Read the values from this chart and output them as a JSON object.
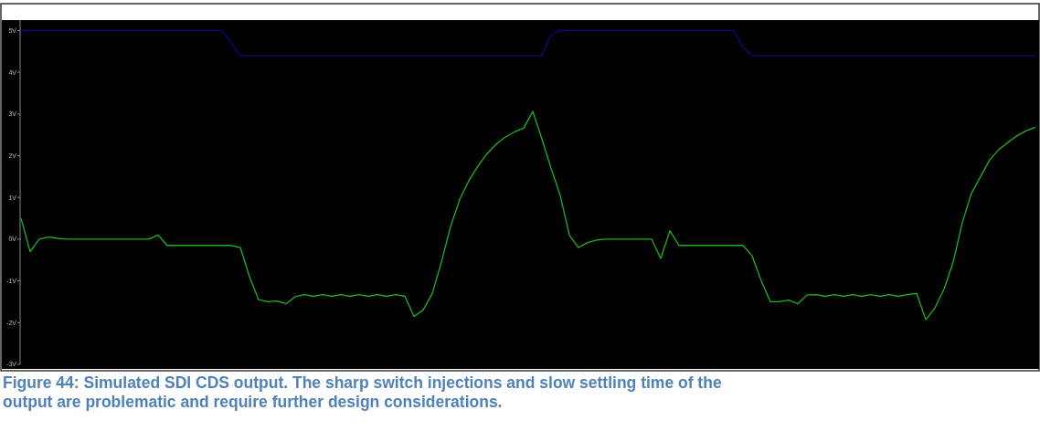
{
  "chart_data": {
    "type": "line",
    "categories": [
      null,
      null,
      null,
      null,
      null,
      null,
      null,
      null,
      null,
      null,
      null,
      null,
      null,
      null,
      null,
      null,
      null,
      null,
      null,
      null,
      null,
      null,
      null,
      null,
      null,
      null,
      null,
      null,
      null,
      null,
      null,
      null,
      null,
      null,
      null,
      null,
      null,
      null,
      null,
      null,
      null,
      null,
      null,
      null,
      null,
      null,
      null,
      null,
      null,
      null,
      null,
      null,
      null,
      null,
      null,
      null,
      null,
      null,
      null,
      null,
      null,
      null,
      null,
      null,
      null,
      null,
      null,
      null,
      null,
      null,
      null,
      null,
      null,
      null,
      null,
      null,
      null,
      null,
      null,
      null,
      null,
      null,
      null,
      null,
      null,
      null,
      null,
      null,
      null,
      null,
      null,
      null,
      null,
      null,
      null,
      null,
      null,
      null,
      null,
      null,
      null,
      null,
      null,
      null,
      null,
      null,
      null,
      null,
      null,
      null,
      null,
      null
    ],
    "series": [
      {
        "color": "#0c0c86",
        "values": [
          5,
          5,
          5,
          5,
          5,
          5,
          5,
          5,
          5,
          5,
          5,
          5,
          5,
          5,
          5,
          5,
          5,
          5,
          5,
          5,
          5,
          5,
          5,
          4.7,
          4.4,
          4.4,
          4.4,
          4.4,
          4.4,
          4.4,
          4.4,
          4.4,
          4.4,
          4.4,
          4.4,
          4.4,
          4.4,
          4.4,
          4.4,
          4.4,
          4.4,
          4.4,
          4.4,
          4.4,
          4.4,
          4.4,
          4.4,
          4.4,
          4.4,
          4.4,
          4.4,
          4.4,
          4.4,
          4.4,
          4.4,
          4.4,
          4.4,
          4.4,
          4.9,
          5,
          5,
          5,
          5,
          5,
          5,
          5,
          5,
          5,
          5,
          5,
          5,
          5,
          5,
          5,
          5,
          5,
          5,
          5,
          5,
          4.6,
          4.4,
          4.4,
          4.4,
          4.4,
          4.4,
          4.4,
          4.4,
          4.4,
          4.4,
          4.4,
          4.4,
          4.4,
          4.4,
          4.4,
          4.4,
          4.4,
          4.4,
          4.4,
          4.4,
          4.4,
          4.4,
          4.4,
          4.4,
          4.4,
          4.4,
          4.4,
          4.4,
          4.4,
          4.4,
          4.4,
          4.4,
          4.4
        ]
      },
      {
        "color": "#1fb31f",
        "values": [
          0.5,
          -0.3,
          0,
          0.05,
          0.02,
          0,
          0,
          0,
          0,
          0,
          0,
          0,
          0,
          0,
          0,
          0.1,
          -0.15,
          -0.15,
          -0.15,
          -0.15,
          -0.15,
          -0.15,
          -0.15,
          -0.15,
          -0.2,
          -0.9,
          -1.45,
          -1.5,
          -1.48,
          -1.55,
          -1.38,
          -1.33,
          -1.37,
          -1.33,
          -1.37,
          -1.33,
          -1.37,
          -1.33,
          -1.37,
          -1.33,
          -1.37,
          -1.33,
          -1.37,
          -1.85,
          -1.7,
          -1.3,
          -0.55,
          0.3,
          0.95,
          1.4,
          1.75,
          2.05,
          2.28,
          2.45,
          2.57,
          2.66,
          3.06,
          2.4,
          1.7,
          1.05,
          0.1,
          -0.2,
          -0.08,
          -0.02,
          0,
          0,
          0,
          0,
          0,
          0,
          -0.46,
          0.2,
          -0.15,
          -0.15,
          -0.15,
          -0.15,
          -0.15,
          -0.15,
          -0.15,
          -0.15,
          -0.4,
          -1,
          -1.5,
          -1.5,
          -1.46,
          -1.55,
          -1.34,
          -1.33,
          -1.37,
          -1.33,
          -1.37,
          -1.33,
          -1.37,
          -1.33,
          -1.37,
          -1.33,
          -1.37,
          -1.33,
          -1.3,
          -1.93,
          -1.65,
          -1.2,
          -0.55,
          0.4,
          1.1,
          1.5,
          1.9,
          2.15,
          2.32,
          2.48,
          2.6,
          2.68
        ]
      }
    ],
    "ylim": [
      -3,
      5.25
    ],
    "yticks": [
      {
        "value": 5,
        "label": "5V"
      },
      {
        "value": 4,
        "label": "4V"
      },
      {
        "value": 3,
        "label": "3V"
      },
      {
        "value": 2,
        "label": "2V"
      },
      {
        "value": 1,
        "label": "1V"
      },
      {
        "value": 0,
        "label": "0V"
      },
      {
        "value": -1,
        "label": "-1V"
      },
      {
        "value": -2,
        "label": "-2V"
      },
      {
        "value": -3,
        "label": "-3V"
      }
    ],
    "tick_labels": "y",
    "annotations": [
      "Figure 44: Simulated SDI CDS output. The sharp switch injections and slow settling time of the output are problematic and require further design considerations."
    ]
  }
}
